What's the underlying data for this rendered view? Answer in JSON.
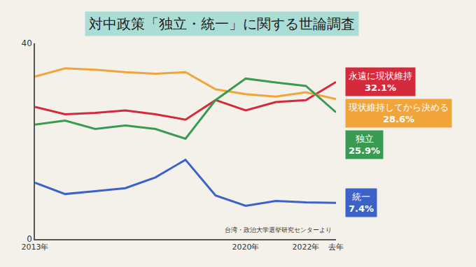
{
  "chart_data": {
    "type": "line",
    "title": "対中政策「独立・統一」に関する世論調査",
    "categories": [
      "2013年",
      null,
      null,
      null,
      null,
      null,
      null,
      "2020年",
      null,
      "2022年",
      "去年"
    ],
    "series": [
      {
        "name": "永遠に現状維持",
        "color": "#d42a3c",
        "values": [
          27.0,
          25.5,
          25.8,
          26.3,
          25.5,
          24.4,
          28.4,
          26.3,
          28.0,
          28.4,
          32.1
        ],
        "value_labels": [
          null,
          null,
          null,
          null,
          null,
          null,
          null,
          null,
          null,
          null,
          "32.1%"
        ]
      },
      {
        "name": "現状維持してから決める",
        "color": "#f0a43a",
        "values": [
          33.2,
          34.9,
          34.6,
          34.1,
          33.8,
          34.1,
          30.6,
          29.6,
          29.1,
          30.0,
          28.6
        ],
        "value_labels": [
          null,
          null,
          null,
          null,
          null,
          null,
          null,
          null,
          null,
          null,
          "28.6%"
        ]
      },
      {
        "name": "独立",
        "color": "#3a9a52",
        "values": [
          23.4,
          24.2,
          22.5,
          23.2,
          22.5,
          20.5,
          28.4,
          32.8,
          32.0,
          31.3,
          25.9
        ],
        "value_labels": [
          null,
          null,
          null,
          null,
          null,
          null,
          null,
          null,
          null,
          null,
          "25.9%"
        ]
      },
      {
        "name": "統一",
        "color": "#3a62c8",
        "values": [
          11.5,
          9.2,
          9.8,
          10.4,
          12.6,
          16.2,
          8.9,
          6.8,
          7.8,
          7.5,
          7.4
        ],
        "value_labels": [
          null,
          null,
          null,
          null,
          null,
          null,
          null,
          null,
          null,
          null,
          "7.4%"
        ]
      }
    ],
    "ylim": [
      0,
      40
    ],
    "yticks": [
      0,
      40
    ],
    "grid": false,
    "source": "台湾・政治大学選挙研究センターより"
  }
}
